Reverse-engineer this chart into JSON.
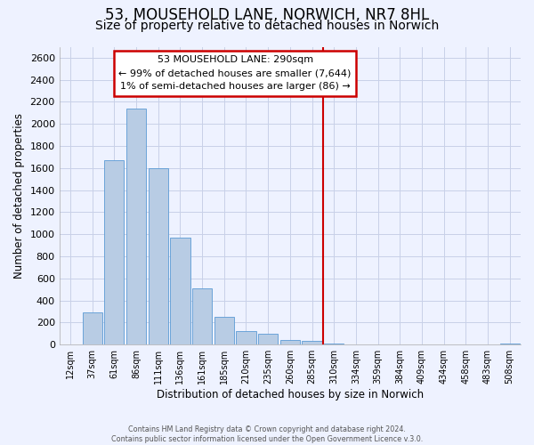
{
  "title": "53, MOUSEHOLD LANE, NORWICH, NR7 8HL",
  "subtitle": "Size of property relative to detached houses in Norwich",
  "xlabel": "Distribution of detached houses by size in Norwich",
  "ylabel": "Number of detached properties",
  "bar_values": [
    5,
    290,
    1670,
    2140,
    1600,
    970,
    510,
    250,
    120,
    95,
    40,
    30,
    10,
    5,
    5,
    5,
    5,
    5,
    5,
    5,
    10
  ],
  "bar_labels": [
    "12sqm",
    "37sqm",
    "61sqm",
    "86sqm",
    "111sqm",
    "136sqm",
    "161sqm",
    "185sqm",
    "210sqm",
    "235sqm",
    "260sqm",
    "285sqm",
    "310sqm",
    "334sqm",
    "359sqm",
    "384sqm",
    "409sqm",
    "434sqm",
    "458sqm",
    "483sqm",
    "508sqm"
  ],
  "bar_color": "#b8cce4",
  "bar_edge_color": "#5b9bd5",
  "vline_x": 11.5,
  "vline_color": "#cc0000",
  "ylim": [
    0,
    2700
  ],
  "yticks": [
    0,
    200,
    400,
    600,
    800,
    1000,
    1200,
    1400,
    1600,
    1800,
    2000,
    2200,
    2400,
    2600
  ],
  "annotation_title": "53 MOUSEHOLD LANE: 290sqm",
  "annotation_line1": "← 99% of detached houses are smaller (7,644)",
  "annotation_line2": "1% of semi-detached houses are larger (86) →",
  "annotation_box_color": "#cc0000",
  "bg_color": "#eef2ff",
  "grid_color": "#c8d0e8",
  "footer1": "Contains HM Land Registry data © Crown copyright and database right 2024.",
  "footer2": "Contains public sector information licensed under the Open Government Licence v.3.0.",
  "title_fontsize": 12,
  "subtitle_fontsize": 10
}
